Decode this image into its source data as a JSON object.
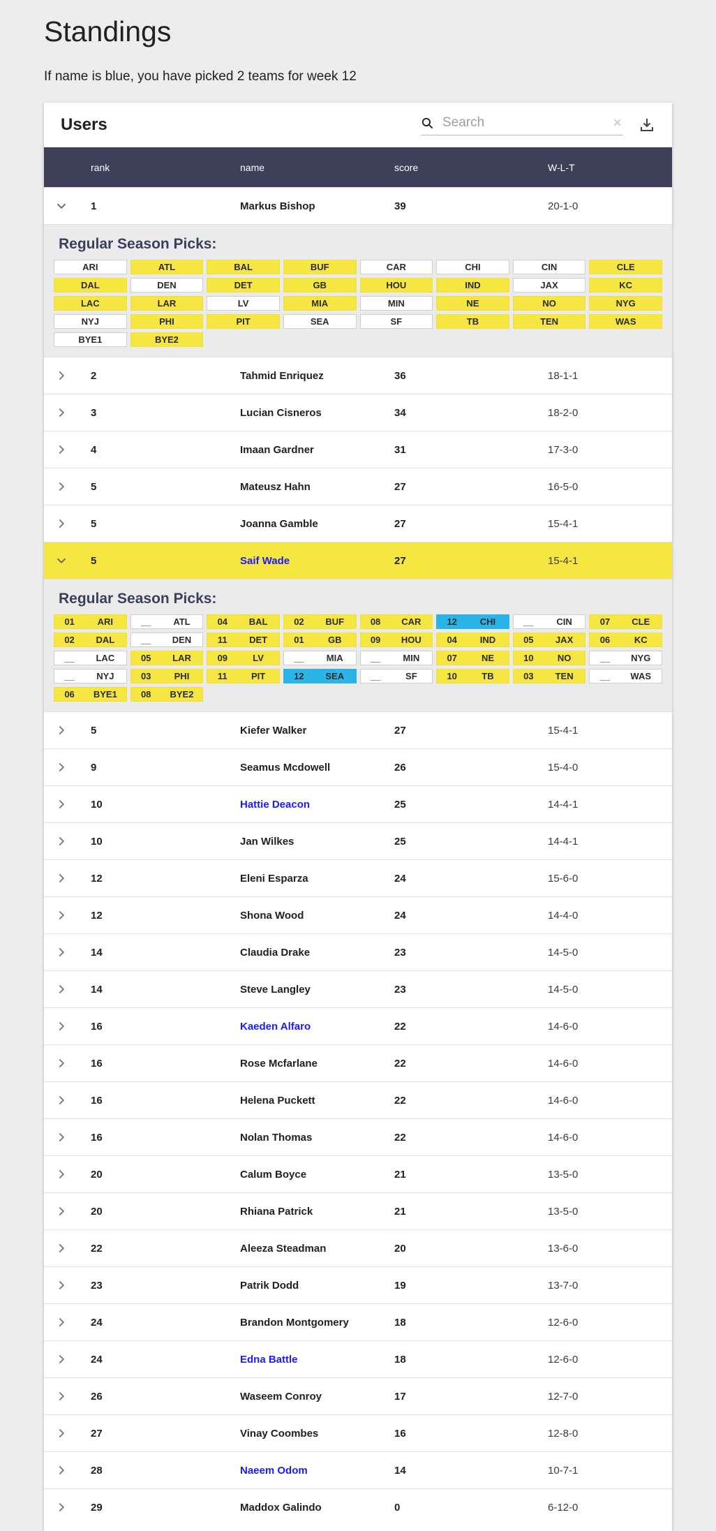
{
  "page": {
    "title": "Standings",
    "subtitle": "If name is blue, you have picked 2 teams for week 12"
  },
  "panel": {
    "title": "Users",
    "search_placeholder": "Search",
    "clear_glyph": "×"
  },
  "colors": {
    "header_bg": "#3e4059",
    "highlight_yellow": "#f5e642",
    "pick_blue": "#2ab4e8",
    "name_blue": "#1b1aff",
    "section_bg": "#ebebeb",
    "page_bg": "#ededed"
  },
  "picks_label": "Regular Season Picks:",
  "table": {
    "columns": [
      "rank",
      "name",
      "score",
      "W-L-T"
    ],
    "rows": [
      {
        "rank": "1",
        "name": "Markus Bishop",
        "score": "39",
        "wlt": "20-1-0",
        "expanded": true,
        "highlighted": false,
        "blue_name": false,
        "picks": [
          {
            "week": "",
            "team": "ARI",
            "status": "white"
          },
          {
            "week": "",
            "team": "ATL",
            "status": "yellow"
          },
          {
            "week": "",
            "team": "BAL",
            "status": "yellow"
          },
          {
            "week": "",
            "team": "BUF",
            "status": "yellow"
          },
          {
            "week": "",
            "team": "CAR",
            "status": "white"
          },
          {
            "week": "",
            "team": "CHI",
            "status": "white"
          },
          {
            "week": "",
            "team": "CIN",
            "status": "white"
          },
          {
            "week": "",
            "team": "CLE",
            "status": "yellow"
          },
          {
            "week": "",
            "team": "DAL",
            "status": "yellow"
          },
          {
            "week": "",
            "team": "DEN",
            "status": "white"
          },
          {
            "week": "",
            "team": "DET",
            "status": "yellow"
          },
          {
            "week": "",
            "team": "GB",
            "status": "yellow"
          },
          {
            "week": "",
            "team": "HOU",
            "status": "yellow"
          },
          {
            "week": "",
            "team": "IND",
            "status": "yellow"
          },
          {
            "week": "",
            "team": "JAX",
            "status": "white"
          },
          {
            "week": "",
            "team": "KC",
            "status": "yellow"
          },
          {
            "week": "",
            "team": "LAC",
            "status": "yellow"
          },
          {
            "week": "",
            "team": "LAR",
            "status": "yellow"
          },
          {
            "week": "",
            "team": "LV",
            "status": "white"
          },
          {
            "week": "",
            "team": "MIA",
            "status": "yellow"
          },
          {
            "week": "",
            "team": "MIN",
            "status": "white"
          },
          {
            "week": "",
            "team": "NE",
            "status": "yellow"
          },
          {
            "week": "",
            "team": "NO",
            "status": "yellow"
          },
          {
            "week": "",
            "team": "NYG",
            "status": "yellow"
          },
          {
            "week": "",
            "team": "NYJ",
            "status": "white"
          },
          {
            "week": "",
            "team": "PHI",
            "status": "yellow"
          },
          {
            "week": "",
            "team": "PIT",
            "status": "yellow"
          },
          {
            "week": "",
            "team": "SEA",
            "status": "white"
          },
          {
            "week": "",
            "team": "SF",
            "status": "white"
          },
          {
            "week": "",
            "team": "TB",
            "status": "yellow"
          },
          {
            "week": "",
            "team": "TEN",
            "status": "yellow"
          },
          {
            "week": "",
            "team": "WAS",
            "status": "yellow"
          },
          {
            "week": "",
            "team": "BYE1",
            "status": "white"
          },
          {
            "week": "",
            "team": "BYE2",
            "status": "yellow"
          }
        ]
      },
      {
        "rank": "2",
        "name": "Tahmid Enriquez",
        "score": "36",
        "wlt": "18-1-1",
        "expanded": false,
        "highlighted": false,
        "blue_name": false
      },
      {
        "rank": "3",
        "name": "Lucian Cisneros",
        "score": "34",
        "wlt": "18-2-0",
        "expanded": false,
        "highlighted": false,
        "blue_name": false
      },
      {
        "rank": "4",
        "name": "Imaan Gardner",
        "score": "31",
        "wlt": "17-3-0",
        "expanded": false,
        "highlighted": false,
        "blue_name": false
      },
      {
        "rank": "5",
        "name": "Mateusz Hahn",
        "score": "27",
        "wlt": "16-5-0",
        "expanded": false,
        "highlighted": false,
        "blue_name": false
      },
      {
        "rank": "5",
        "name": "Joanna Gamble",
        "score": "27",
        "wlt": "15-4-1",
        "expanded": false,
        "highlighted": false,
        "blue_name": false
      },
      {
        "rank": "5",
        "name": "Saif Wade",
        "score": "27",
        "wlt": "15-4-1",
        "expanded": true,
        "highlighted": true,
        "blue_name": true,
        "picks": [
          {
            "week": "01",
            "team": "ARI",
            "status": "yellow"
          },
          {
            "week": "__",
            "team": "ATL",
            "status": "white"
          },
          {
            "week": "04",
            "team": "BAL",
            "status": "yellow"
          },
          {
            "week": "02",
            "team": "BUF",
            "status": "yellow"
          },
          {
            "week": "08",
            "team": "CAR",
            "status": "yellow"
          },
          {
            "week": "12",
            "team": "CHI",
            "status": "blue"
          },
          {
            "week": "__",
            "team": "CIN",
            "status": "white"
          },
          {
            "week": "07",
            "team": "CLE",
            "status": "yellow"
          },
          {
            "week": "02",
            "team": "DAL",
            "status": "yellow"
          },
          {
            "week": "__",
            "team": "DEN",
            "status": "white"
          },
          {
            "week": "11",
            "team": "DET",
            "status": "yellow"
          },
          {
            "week": "01",
            "team": "GB",
            "status": "yellow"
          },
          {
            "week": "09",
            "team": "HOU",
            "status": "yellow"
          },
          {
            "week": "04",
            "team": "IND",
            "status": "yellow"
          },
          {
            "week": "05",
            "team": "JAX",
            "status": "yellow"
          },
          {
            "week": "06",
            "team": "KC",
            "status": "yellow"
          },
          {
            "week": "__",
            "team": "LAC",
            "status": "white"
          },
          {
            "week": "05",
            "team": "LAR",
            "status": "yellow"
          },
          {
            "week": "09",
            "team": "LV",
            "status": "yellow"
          },
          {
            "week": "__",
            "team": "MIA",
            "status": "white"
          },
          {
            "week": "__",
            "team": "MIN",
            "status": "white"
          },
          {
            "week": "07",
            "team": "NE",
            "status": "yellow"
          },
          {
            "week": "10",
            "team": "NO",
            "status": "yellow"
          },
          {
            "week": "__",
            "team": "NYG",
            "status": "white"
          },
          {
            "week": "__",
            "team": "NYJ",
            "status": "white"
          },
          {
            "week": "03",
            "team": "PHI",
            "status": "yellow"
          },
          {
            "week": "11",
            "team": "PIT",
            "status": "yellow"
          },
          {
            "week": "12",
            "team": "SEA",
            "status": "blue"
          },
          {
            "week": "__",
            "team": "SF",
            "status": "white"
          },
          {
            "week": "10",
            "team": "TB",
            "status": "yellow"
          },
          {
            "week": "03",
            "team": "TEN",
            "status": "yellow"
          },
          {
            "week": "__",
            "team": "WAS",
            "status": "white"
          },
          {
            "week": "06",
            "team": "BYE1",
            "status": "yellow"
          },
          {
            "week": "08",
            "team": "BYE2",
            "status": "yellow"
          }
        ]
      },
      {
        "rank": "5",
        "name": "Kiefer Walker",
        "score": "27",
        "wlt": "15-4-1",
        "expanded": false,
        "highlighted": false,
        "blue_name": false
      },
      {
        "rank": "9",
        "name": "Seamus Mcdowell",
        "score": "26",
        "wlt": "15-4-0",
        "expanded": false,
        "highlighted": false,
        "blue_name": false
      },
      {
        "rank": "10",
        "name": "Hattie Deacon",
        "score": "25",
        "wlt": "14-4-1",
        "expanded": false,
        "highlighted": false,
        "blue_name": true
      },
      {
        "rank": "10",
        "name": "Jan Wilkes",
        "score": "25",
        "wlt": "14-4-1",
        "expanded": false,
        "highlighted": false,
        "blue_name": false
      },
      {
        "rank": "12",
        "name": "Eleni Esparza",
        "score": "24",
        "wlt": "15-6-0",
        "expanded": false,
        "highlighted": false,
        "blue_name": false
      },
      {
        "rank": "12",
        "name": "Shona Wood",
        "score": "24",
        "wlt": "14-4-0",
        "expanded": false,
        "highlighted": false,
        "blue_name": false
      },
      {
        "rank": "14",
        "name": "Claudia Drake",
        "score": "23",
        "wlt": "14-5-0",
        "expanded": false,
        "highlighted": false,
        "blue_name": false
      },
      {
        "rank": "14",
        "name": "Steve Langley",
        "score": "23",
        "wlt": "14-5-0",
        "expanded": false,
        "highlighted": false,
        "blue_name": false
      },
      {
        "rank": "16",
        "name": "Kaeden Alfaro",
        "score": "22",
        "wlt": "14-6-0",
        "expanded": false,
        "highlighted": false,
        "blue_name": true
      },
      {
        "rank": "16",
        "name": "Rose Mcfarlane",
        "score": "22",
        "wlt": "14-6-0",
        "expanded": false,
        "highlighted": false,
        "blue_name": false
      },
      {
        "rank": "16",
        "name": "Helena Puckett",
        "score": "22",
        "wlt": "14-6-0",
        "expanded": false,
        "highlighted": false,
        "blue_name": false
      },
      {
        "rank": "16",
        "name": "Nolan Thomas",
        "score": "22",
        "wlt": "14-6-0",
        "expanded": false,
        "highlighted": false,
        "blue_name": false
      },
      {
        "rank": "20",
        "name": "Calum Boyce",
        "score": "21",
        "wlt": "13-5-0",
        "expanded": false,
        "highlighted": false,
        "blue_name": false
      },
      {
        "rank": "20",
        "name": "Rhiana Patrick",
        "score": "21",
        "wlt": "13-5-0",
        "expanded": false,
        "highlighted": false,
        "blue_name": false
      },
      {
        "rank": "22",
        "name": "Aleeza Steadman",
        "score": "20",
        "wlt": "13-6-0",
        "expanded": false,
        "highlighted": false,
        "blue_name": false
      },
      {
        "rank": "23",
        "name": "Patrik Dodd",
        "score": "19",
        "wlt": "13-7-0",
        "expanded": false,
        "highlighted": false,
        "blue_name": false
      },
      {
        "rank": "24",
        "name": "Brandon Montgomery",
        "score": "18",
        "wlt": "12-6-0",
        "expanded": false,
        "highlighted": false,
        "blue_name": false
      },
      {
        "rank": "24",
        "name": "Edna Battle",
        "score": "18",
        "wlt": "12-6-0",
        "expanded": false,
        "highlighted": false,
        "blue_name": true
      },
      {
        "rank": "26",
        "name": "Waseem Conroy",
        "score": "17",
        "wlt": "12-7-0",
        "expanded": false,
        "highlighted": false,
        "blue_name": false
      },
      {
        "rank": "27",
        "name": "Vinay Coombes",
        "score": "16",
        "wlt": "12-8-0",
        "expanded": false,
        "highlighted": false,
        "blue_name": false
      },
      {
        "rank": "28",
        "name": "Naeem Odom",
        "score": "14",
        "wlt": "10-7-1",
        "expanded": false,
        "highlighted": false,
        "blue_name": true
      },
      {
        "rank": "29",
        "name": "Maddox Galindo",
        "score": "0",
        "wlt": "6-12-0",
        "expanded": false,
        "highlighted": false,
        "blue_name": false
      }
    ]
  }
}
